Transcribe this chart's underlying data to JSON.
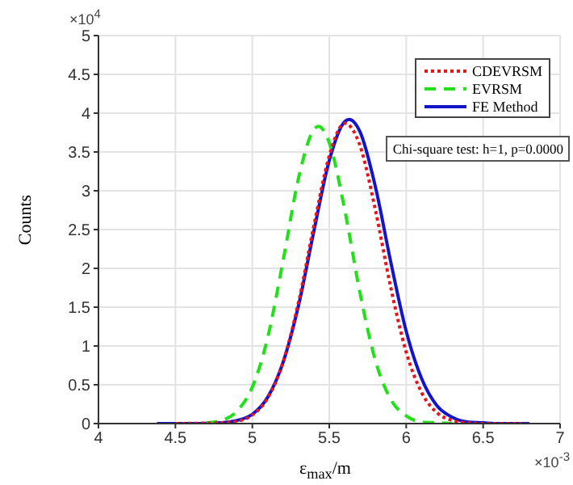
{
  "chart_data": {
    "type": "line",
    "xlabel": "ε$_{max}$/m",
    "ylabel": "Counts",
    "xlim": [
      4,
      7
    ],
    "xticks": [
      4,
      4.5,
      5,
      5.5,
      6,
      6.5,
      7
    ],
    "ylim": [
      0,
      5
    ],
    "yticks": [
      0,
      0.5,
      1,
      1.5,
      2,
      2.5,
      3,
      3.5,
      4,
      4.5,
      5
    ],
    "grid": true,
    "legend": "top right",
    "marker": "none",
    "annotations": [
      "Chi-square test: h=1, p=0.0000",
      "×10$^{4}$",
      "×10$^{-3}$"
    ],
    "series": [
      {
        "name": "CDEVRSM",
        "color": "#e8141c",
        "line_style": "dotted",
        "x": [
          4.5,
          4.8,
          4.9,
          5.0,
          5.1,
          5.2,
          5.3,
          5.4,
          5.5,
          5.6,
          5.7,
          5.8,
          5.9,
          6.0,
          6.1,
          6.2,
          6.3,
          6.4,
          6.5,
          6.75
        ],
        "values": [
          0,
          0.01,
          0.03,
          0.11,
          0.33,
          0.79,
          1.56,
          2.55,
          3.45,
          3.87,
          3.58,
          2.75,
          1.75,
          0.92,
          0.4,
          0.14,
          0.04,
          0.01,
          0,
          0
        ]
      },
      {
        "name": "EVRSM",
        "color": "#22e01a",
        "line_style": "dashed",
        "x": [
          4.7,
          4.8,
          4.9,
          5.0,
          5.1,
          5.2,
          5.3,
          5.4,
          5.43,
          5.5,
          5.6,
          5.7,
          5.8,
          5.9,
          6.0,
          6.1,
          6.2,
          6.3
        ],
        "values": [
          0.01,
          0.04,
          0.16,
          0.47,
          1.11,
          2.1,
          3.16,
          3.79,
          3.83,
          3.62,
          2.76,
          1.68,
          0.81,
          0.31,
          0.1,
          0.02,
          0.01,
          0
        ]
      },
      {
        "name": "FE Method",
        "color": "#1414c8",
        "line_style": "solid",
        "x": [
          4.38,
          4.6,
          4.8,
          4.9,
          5.0,
          5.1,
          5.2,
          5.3,
          5.4,
          5.5,
          5.6,
          5.63,
          5.7,
          5.8,
          5.9,
          6.0,
          6.1,
          6.2,
          6.3,
          6.4,
          6.5,
          6.6,
          6.8
        ],
        "values": [
          0,
          0,
          0.01,
          0.04,
          0.12,
          0.34,
          0.79,
          1.52,
          2.48,
          3.39,
          3.89,
          3.92,
          3.76,
          3.05,
          2.08,
          1.19,
          0.58,
          0.23,
          0.08,
          0.02,
          0.01,
          0,
          0
        ]
      }
    ]
  }
}
